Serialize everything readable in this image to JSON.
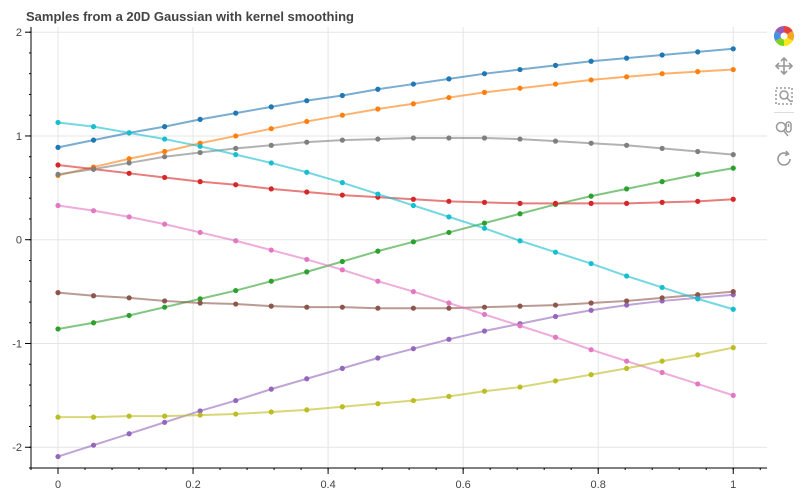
{
  "chart_data": {
    "type": "line",
    "title": "Samples from a 20D Gaussian with kernel smoothing",
    "xlabel": "",
    "ylabel": "",
    "xlim": [
      -0.04,
      1.05
    ],
    "ylim": [
      -2.2,
      2.05
    ],
    "x_ticks": [
      0,
      0.2,
      0.4,
      0.6,
      0.8,
      1
    ],
    "x_tick_labels": [
      "0",
      "0.2",
      "0.4",
      "0.6",
      "0.8",
      "1"
    ],
    "y_ticks": [
      -2,
      -1,
      0,
      1,
      2
    ],
    "y_tick_labels": [
      "-2",
      "-1",
      "0",
      "1",
      "2"
    ],
    "grid": true,
    "markers": true,
    "x": [
      0,
      0.0526,
      0.1053,
      0.1579,
      0.2105,
      0.2632,
      0.3158,
      0.3684,
      0.4211,
      0.4737,
      0.5263,
      0.5789,
      0.6316,
      0.6842,
      0.7368,
      0.7895,
      0.8421,
      0.8947,
      0.9474,
      1
    ],
    "series": [
      {
        "color": "#1f77b4",
        "values": [
          0.89,
          0.96,
          1.03,
          1.09,
          1.16,
          1.22,
          1.28,
          1.34,
          1.39,
          1.45,
          1.5,
          1.55,
          1.6,
          1.64,
          1.68,
          1.72,
          1.75,
          1.78,
          1.81,
          1.84
        ]
      },
      {
        "color": "#ff7f0e",
        "values": [
          0.62,
          0.7,
          0.78,
          0.85,
          0.93,
          1.0,
          1.07,
          1.14,
          1.2,
          1.26,
          1.31,
          1.37,
          1.42,
          1.46,
          1.5,
          1.54,
          1.57,
          1.6,
          1.62,
          1.64
        ]
      },
      {
        "color": "#2ca02c",
        "values": [
          -0.86,
          -0.8,
          -0.73,
          -0.65,
          -0.57,
          -0.49,
          -0.4,
          -0.31,
          -0.21,
          -0.11,
          -0.02,
          0.07,
          0.16,
          0.25,
          0.34,
          0.42,
          0.49,
          0.56,
          0.63,
          0.69
        ]
      },
      {
        "color": "#d62728",
        "values": [
          0.72,
          0.68,
          0.64,
          0.6,
          0.56,
          0.53,
          0.49,
          0.46,
          0.43,
          0.41,
          0.39,
          0.37,
          0.36,
          0.35,
          0.35,
          0.35,
          0.35,
          0.36,
          0.37,
          0.39
        ]
      },
      {
        "color": "#9467bd",
        "values": [
          -2.09,
          -1.98,
          -1.87,
          -1.76,
          -1.65,
          -1.55,
          -1.44,
          -1.34,
          -1.24,
          -1.14,
          -1.05,
          -0.96,
          -0.88,
          -0.81,
          -0.74,
          -0.68,
          -0.63,
          -0.59,
          -0.56,
          -0.53
        ]
      },
      {
        "color": "#8c564b",
        "values": [
          -0.51,
          -0.54,
          -0.56,
          -0.59,
          -0.61,
          -0.62,
          -0.64,
          -0.65,
          -0.65,
          -0.66,
          -0.66,
          -0.66,
          -0.65,
          -0.64,
          -0.63,
          -0.61,
          -0.59,
          -0.56,
          -0.53,
          -0.5
        ]
      },
      {
        "color": "#e377c2",
        "values": [
          0.33,
          0.28,
          0.22,
          0.15,
          0.07,
          -0.01,
          -0.1,
          -0.19,
          -0.29,
          -0.4,
          -0.5,
          -0.61,
          -0.72,
          -0.83,
          -0.94,
          -1.06,
          -1.17,
          -1.28,
          -1.39,
          -1.5
        ]
      },
      {
        "color": "#7f7f7f",
        "values": [
          0.63,
          0.68,
          0.74,
          0.8,
          0.84,
          0.88,
          0.91,
          0.94,
          0.96,
          0.97,
          0.98,
          0.98,
          0.98,
          0.97,
          0.95,
          0.93,
          0.91,
          0.88,
          0.85,
          0.82
        ]
      },
      {
        "color": "#bcbd22",
        "values": [
          -1.71,
          -1.71,
          -1.7,
          -1.7,
          -1.69,
          -1.68,
          -1.66,
          -1.64,
          -1.61,
          -1.58,
          -1.55,
          -1.51,
          -1.46,
          -1.42,
          -1.36,
          -1.3,
          -1.24,
          -1.17,
          -1.11,
          -1.04
        ]
      },
      {
        "color": "#17becf",
        "values": [
          1.13,
          1.09,
          1.03,
          0.97,
          0.9,
          0.82,
          0.74,
          0.65,
          0.55,
          0.44,
          0.33,
          0.22,
          0.11,
          -0.01,
          -0.12,
          -0.23,
          -0.35,
          -0.46,
          -0.57,
          -0.67
        ]
      }
    ]
  },
  "toolbar": {
    "tools": [
      {
        "icon": "bokeh-logo-icon"
      },
      {
        "icon": "pan-icon"
      },
      {
        "icon": "box-zoom-icon"
      },
      {
        "icon": "wheel-zoom-icon"
      },
      {
        "icon": "reset-icon"
      }
    ]
  }
}
